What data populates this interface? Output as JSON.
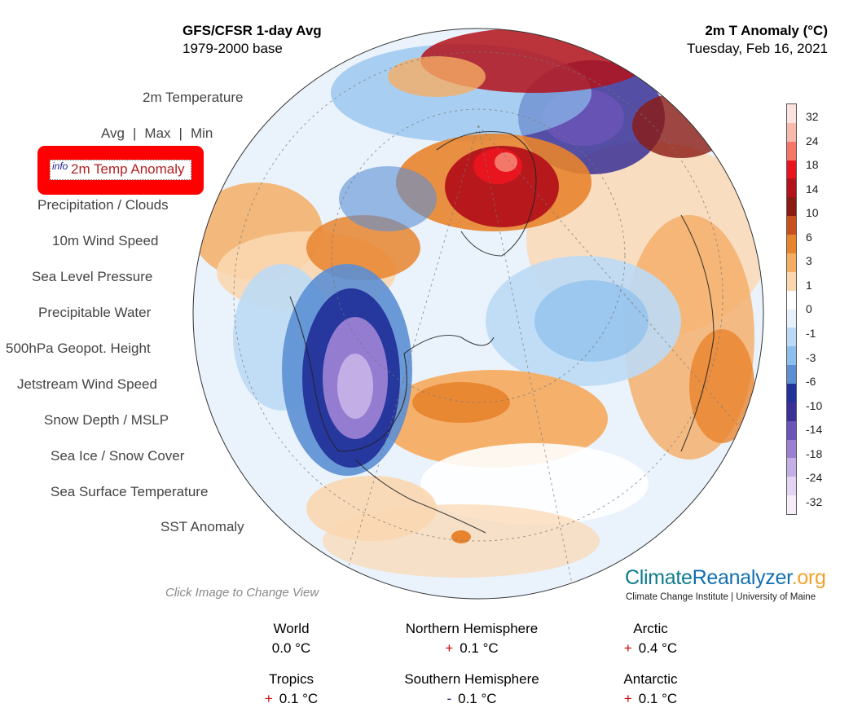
{
  "header": {
    "model_title": "GFS/CFSR 1-day Avg",
    "base_period": "1979-2000 base",
    "variable_title": "2m T Anomaly (°C)",
    "date": "Tuesday, Feb 16, 2021"
  },
  "menu": {
    "temperature": "2m Temperature",
    "avg": "Avg",
    "max": "Max",
    "min": "Min",
    "separator": "|",
    "info": "info",
    "selected": "2m Temp Anomaly",
    "items": [
      "Precipitation / Clouds",
      "10m Wind Speed",
      "Sea Level Pressure",
      "Precipitable Water",
      "500hPa Geopot. Height",
      "Jetstream Wind Speed",
      "Snow Depth / MSLP",
      "Sea Ice / Snow Cover",
      "Sea Surface Temperature",
      "SST Anomaly"
    ]
  },
  "colorbar": {
    "labels": [
      "32",
      "24",
      "18",
      "14",
      "10",
      "6",
      "3",
      "1",
      "0",
      "-1",
      "-3",
      "-6",
      "-10",
      "-14",
      "-18",
      "-24",
      "-32"
    ],
    "colors": [
      "#fbe4e0",
      "#f7b9ac",
      "#f4776a",
      "#e8141e",
      "#b3121a",
      "#8b1a12",
      "#c8501c",
      "#e8842e",
      "#f5ad64",
      "#fbd7b0",
      "#ffffff",
      "#e6f1fb",
      "#bcdaf5",
      "#8cbfed",
      "#5c8fd4",
      "#23329a",
      "#3a3095",
      "#6a55b8",
      "#9a7fd3",
      "#c4aee6",
      "#e2d4f2",
      "#f5eef8"
    ]
  },
  "hint": "Click Image to Change View",
  "logo": {
    "part1": "Climate",
    "part2": "Reanalyzer",
    "part3": ".org",
    "subtitle": "Climate Change Institute | University of Maine"
  },
  "stats": {
    "world": {
      "name": "World",
      "sign": "",
      "value": "0.0 °C"
    },
    "nh": {
      "name": "Northern Hemisphere",
      "sign": "+",
      "value": "0.1 °C"
    },
    "arctic": {
      "name": "Arctic",
      "sign": "+",
      "value": "0.4 °C"
    },
    "tropics": {
      "name": "Tropics",
      "sign": "+",
      "value": "0.1 °C"
    },
    "sh": {
      "name": "Southern Hemisphere",
      "sign": "-",
      "value": "0.1 °C"
    },
    "antarctic": {
      "name": "Antarctic",
      "sign": "+",
      "value": "0.1 °C"
    }
  }
}
